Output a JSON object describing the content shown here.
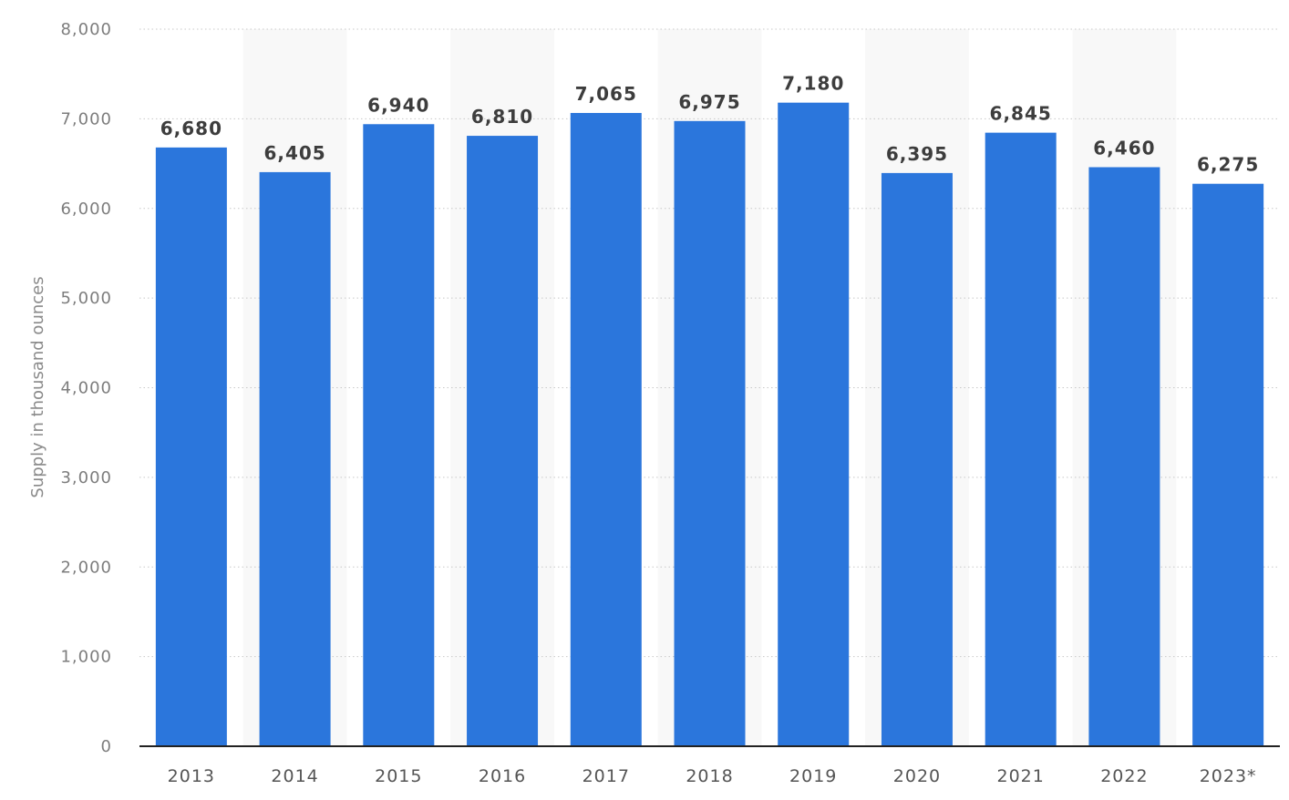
{
  "chart_data": {
    "type": "bar",
    "title": "",
    "xlabel": "",
    "ylabel": "Supply in thousand ounces",
    "categories": [
      "2013",
      "2014",
      "2015",
      "2016",
      "2017",
      "2018",
      "2019",
      "2020",
      "2021",
      "2022",
      "2023*"
    ],
    "series": [
      {
        "values": [
          6680,
          6405,
          6940,
          6810,
          7065,
          6975,
          7180,
          6395,
          6845,
          6460,
          6275
        ],
        "color": "#2b76dc"
      }
    ],
    "data_labels": [
      "6,680",
      "6,405",
      "6,940",
      "6,810",
      "7,065",
      "6,975",
      "7,180",
      "6,395",
      "6,845",
      "6,460",
      "6,275"
    ],
    "ylim": [
      0,
      8000
    ],
    "y_ticks": [
      0,
      1000,
      2000,
      3000,
      4000,
      5000,
      6000,
      7000,
      8000
    ],
    "y_tick_labels": [
      "0",
      "1,000",
      "2,000",
      "3,000",
      "4,000",
      "5,000",
      "6,000",
      "7,000",
      "8,000"
    ],
    "grid": true,
    "grid_style": "dotted",
    "alternating_column_bands": true,
    "legend": "none",
    "colors": {
      "bar": "#2b76dc",
      "band": "#f8f8f8",
      "grid": "#c8c8c8",
      "baseline": "#222222"
    }
  }
}
